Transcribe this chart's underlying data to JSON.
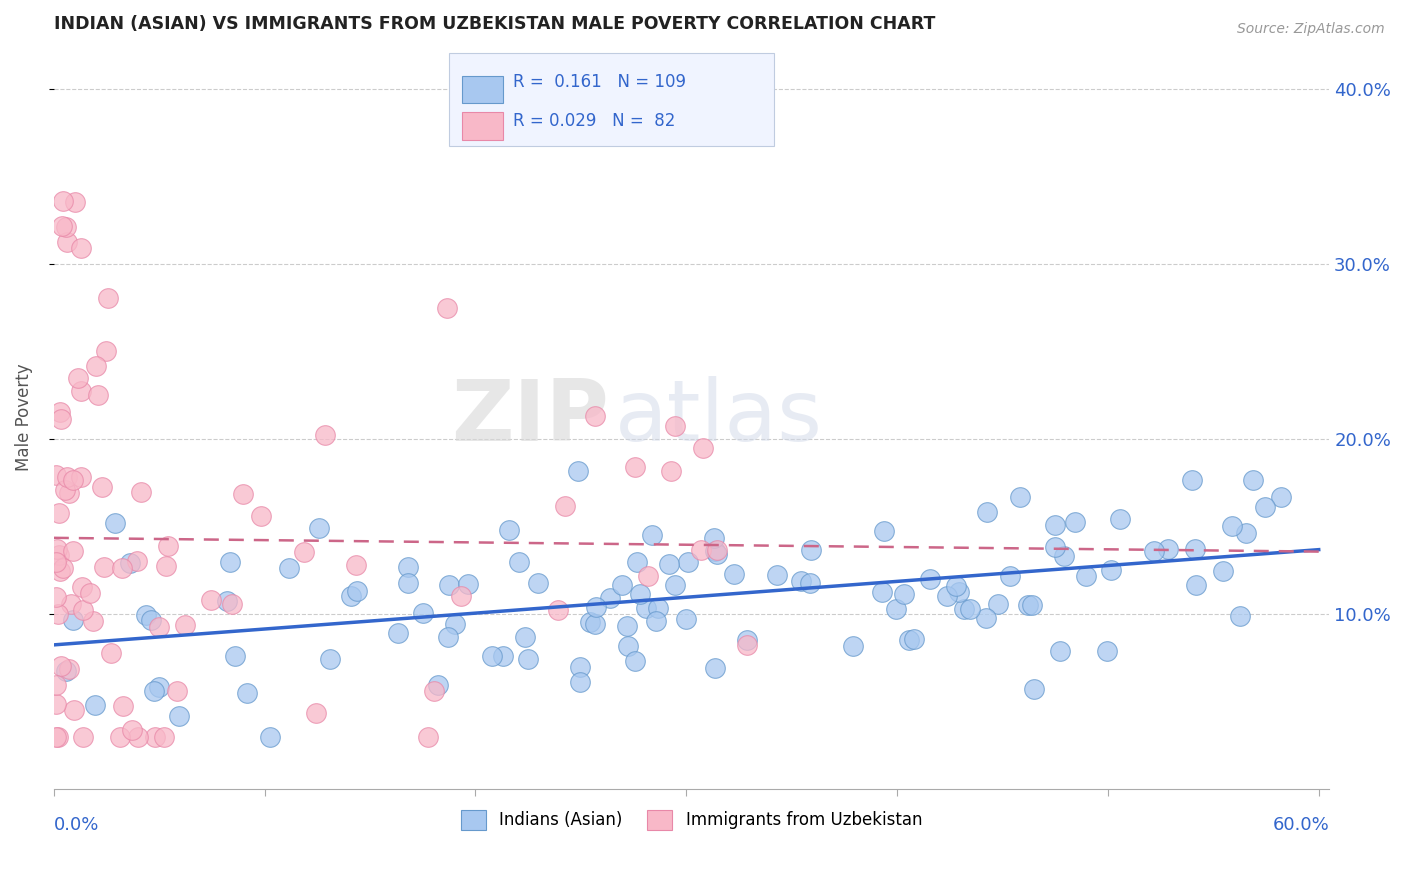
{
  "title": "INDIAN (ASIAN) VS IMMIGRANTS FROM UZBEKISTAN MALE POVERTY CORRELATION CHART",
  "source": "Source: ZipAtlas.com",
  "ylabel": "Male Poverty",
  "color_blue_fill": "#a8c8f0",
  "color_blue_edge": "#6699cc",
  "color_pink_fill": "#f8b8c8",
  "color_pink_edge": "#e888a8",
  "color_blue_line": "#3366cc",
  "color_pink_line": "#cc6688",
  "watermark_zip": "ZIP",
  "watermark_atlas": "atlas",
  "legend_box_color": "#e8eef8",
  "legend_border_color": "#c0cce0",
  "blue_r": "0.161",
  "blue_n": "109",
  "pink_r": "0.029",
  "pink_n": "82",
  "xmin": 0.0,
  "xmax": 0.6,
  "ymin": 0.0,
  "ymax": 0.425,
  "ytick_vals": [
    0.1,
    0.2,
    0.3,
    0.4
  ],
  "ytick_labels": [
    "10.0%",
    "20.0%",
    "30.0%",
    "40.0%"
  ],
  "n_blue": 109,
  "n_pink": 82
}
